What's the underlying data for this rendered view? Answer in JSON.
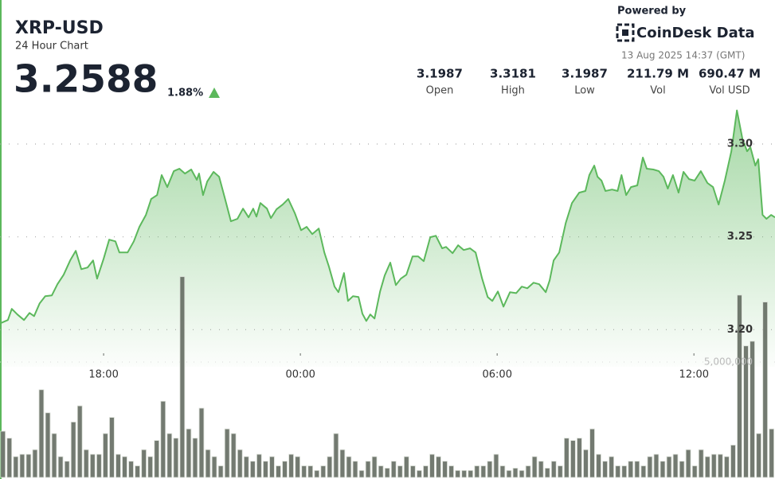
{
  "header": {
    "title": "XRP-USD",
    "subtitle": "24 Hour Chart",
    "price": "3.2588",
    "change": "1.88%",
    "powered_by": "Powered by",
    "brand": "CoinDesk Data",
    "timestamp": "13 Aug 2025 14:37 (GMT)",
    "stats": [
      {
        "value": "3.1987",
        "label": "Open"
      },
      {
        "value": "3.3181",
        "label": "High"
      },
      {
        "value": "3.1987",
        "label": "Low"
      },
      {
        "value": "211.79 M",
        "label": "Vol"
      },
      {
        "value": "690.47 M",
        "label": "Vol USD"
      }
    ]
  },
  "chart_data": [
    {
      "type": "line",
      "color": "#5cb85c",
      "grid": true,
      "xlim": [
        14.84,
        38.47
      ],
      "ylim": [
        3.18,
        3.33
      ],
      "xticks": [
        {
          "value": 18,
          "label": "18:00"
        },
        {
          "value": 24,
          "label": "00:00"
        },
        {
          "value": 30,
          "label": "06:00"
        },
        {
          "value": 36,
          "label": "12:00"
        }
      ],
      "yticks": [
        {
          "value": 3.2,
          "label": "3.20"
        },
        {
          "value": 3.25,
          "label": "3.25"
        },
        {
          "value": 3.3,
          "label": "3.30"
        }
      ],
      "x": [
        14.84,
        15.08,
        15.2,
        15.37,
        15.57,
        15.74,
        15.88,
        16.05,
        16.22,
        16.42,
        16.59,
        16.78,
        16.98,
        17.15,
        17.32,
        17.51,
        17.68,
        17.8,
        18.0,
        18.17,
        18.36,
        18.48,
        18.73,
        18.92,
        19.09,
        19.29,
        19.45,
        19.63,
        19.77,
        19.94,
        20.14,
        20.31,
        20.48,
        20.67,
        20.84,
        20.91,
        21.03,
        21.16,
        21.35,
        21.52,
        21.69,
        21.88,
        22.08,
        22.25,
        22.42,
        22.56,
        22.66,
        22.78,
        22.98,
        23.1,
        23.27,
        23.46,
        23.63,
        23.83,
        24.02,
        24.19,
        24.36,
        24.56,
        24.73,
        24.87,
        25.04,
        25.16,
        25.33,
        25.45,
        25.6,
        25.77,
        25.89,
        26.01,
        26.13,
        26.26,
        26.43,
        26.57,
        26.74,
        26.91,
        27.06,
        27.23,
        27.42,
        27.59,
        27.76,
        27.96,
        28.13,
        28.32,
        28.44,
        28.64,
        28.81,
        28.98,
        29.17,
        29.34,
        29.54,
        29.71,
        29.85,
        30.02,
        30.19,
        30.39,
        30.58,
        30.75,
        30.92,
        31.11,
        31.28,
        31.48,
        31.6,
        31.72,
        31.89,
        32.09,
        32.28,
        32.5,
        32.69,
        32.81,
        32.96,
        33.06,
        33.18,
        33.3,
        33.5,
        33.67,
        33.79,
        33.93,
        34.08,
        34.27,
        34.44,
        34.56,
        34.76,
        34.93,
        35.07,
        35.2,
        35.36,
        35.53,
        35.68,
        35.85,
        36.02,
        36.21,
        36.41,
        36.58,
        36.75,
        36.94,
        37.14,
        37.31,
        37.48,
        37.62,
        37.72,
        37.87,
        37.96,
        38.09,
        38.21,
        38.35,
        38.47
      ],
      "values": [
        3.2034,
        3.2052,
        3.2112,
        3.2082,
        3.2052,
        3.209,
        3.2073,
        3.2142,
        3.218,
        3.2185,
        3.2245,
        3.2296,
        3.2373,
        3.2425,
        3.2326,
        3.2335,
        3.2373,
        3.2275,
        3.2382,
        3.2485,
        3.2476,
        3.2416,
        3.2416,
        3.2476,
        3.2554,
        3.2618,
        3.2704,
        3.2725,
        3.2833,
        3.2768,
        3.2854,
        3.2867,
        3.2841,
        3.2863,
        3.2807,
        3.2841,
        3.2725,
        3.2798,
        3.285,
        3.2824,
        3.2712,
        3.2584,
        3.2597,
        3.2652,
        3.2605,
        3.2652,
        3.2609,
        3.2682,
        3.2652,
        3.2601,
        3.2648,
        3.2674,
        3.2704,
        3.2627,
        3.2536,
        3.2554,
        3.2515,
        3.2545,
        3.2416,
        3.2339,
        3.2232,
        3.2202,
        3.2305,
        3.2155,
        3.218,
        3.2176,
        3.2086,
        3.2047,
        3.2082,
        3.206,
        3.2206,
        3.2292,
        3.2361,
        3.224,
        3.2275,
        3.2296,
        3.2395,
        3.2395,
        3.2369,
        3.2498,
        3.2506,
        3.2438,
        3.2446,
        3.2412,
        3.2455,
        3.2429,
        3.2438,
        3.2416,
        3.2275,
        3.2176,
        3.2155,
        3.2206,
        3.2124,
        3.2202,
        3.2197,
        3.2232,
        3.2223,
        3.2253,
        3.2245,
        3.2202,
        3.2266,
        3.2373,
        3.2416,
        3.2575,
        3.2682,
        3.2738,
        3.2747,
        3.2833,
        3.2884,
        3.2824,
        3.2803,
        3.2747,
        3.2755,
        3.2747,
        3.2833,
        3.2725,
        3.2768,
        3.2777,
        3.2927,
        3.2867,
        3.2863,
        3.2854,
        3.2824,
        3.276,
        3.2833,
        3.2738,
        3.285,
        3.2811,
        3.2803,
        3.2854,
        3.279,
        3.2768,
        3.2674,
        3.2803,
        3.2961,
        3.3181,
        3.3026,
        3.2961,
        3.2983,
        3.2884,
        3.2918,
        3.2618,
        3.2597,
        3.2618,
        3.2605
      ]
    },
    {
      "type": "bar",
      "color": "#5b6358",
      "ylim": [
        0,
        9000000
      ],
      "yticks": [
        {
          "value": 5000000,
          "label": "5,000,000"
        }
      ],
      "categories": [
        null,
        null,
        null,
        null,
        null,
        null,
        null,
        null,
        null,
        null,
        null,
        null,
        null,
        null,
        null,
        null,
        null,
        null,
        null,
        null,
        null,
        null,
        null,
        null,
        null,
        null,
        null,
        null,
        null,
        null,
        null,
        null,
        null,
        null,
        null,
        null,
        null,
        null,
        null,
        null,
        null,
        null,
        null,
        null,
        null,
        null,
        null,
        null,
        null,
        null,
        null,
        null,
        null,
        null,
        null,
        null,
        null,
        null,
        null,
        null,
        null,
        null,
        null,
        null,
        null,
        null,
        null,
        null,
        null,
        null,
        null,
        null,
        null,
        null,
        null,
        null,
        null,
        null,
        null,
        null,
        null,
        null,
        null,
        null,
        null,
        null,
        null,
        null,
        null,
        null,
        null,
        null,
        null,
        null,
        null,
        null,
        null,
        null,
        null,
        null,
        null,
        null,
        null,
        null,
        null,
        null,
        null,
        null,
        null,
        null,
        null,
        null,
        null,
        null,
        null,
        null,
        null,
        null,
        null,
        null,
        null
      ],
      "values": [
        2000000,
        1700000,
        900000,
        1000000,
        1000000,
        1200000,
        3800000,
        2800000,
        1900000,
        900000,
        700000,
        2400000,
        3100000,
        1200000,
        1000000,
        1000000,
        1900000,
        2600000,
        1000000,
        900000,
        700000,
        500000,
        1200000,
        900000,
        1600000,
        3300000,
        1900000,
        1700000,
        8700000,
        2100000,
        1700000,
        3000000,
        1200000,
        900000,
        500000,
        2100000,
        1900000,
        1200000,
        900000,
        700000,
        1000000,
        700000,
        900000,
        500000,
        700000,
        1000000,
        900000,
        500000,
        500000,
        300000,
        500000,
        900000,
        1900000,
        1200000,
        900000,
        700000,
        300000,
        700000,
        900000,
        500000,
        400000,
        700000,
        500000,
        900000,
        500000,
        300000,
        500000,
        1000000,
        900000,
        700000,
        500000,
        300000,
        300000,
        300000,
        500000,
        500000,
        700000,
        1000000,
        500000,
        300000,
        400000,
        300000,
        500000,
        900000,
        700000,
        400000,
        700000,
        500000,
        1700000,
        1600000,
        1700000,
        1200000,
        2100000,
        1000000,
        700000,
        900000,
        500000,
        500000,
        700000,
        700000,
        500000,
        900000,
        1000000,
        700000,
        900000,
        1000000,
        700000,
        1200000,
        500000,
        1200000,
        900000,
        1000000,
        1000000,
        900000,
        1400000,
        7900000,
        5700000,
        5900000,
        1900000,
        7600000,
        2100000
      ]
    }
  ]
}
